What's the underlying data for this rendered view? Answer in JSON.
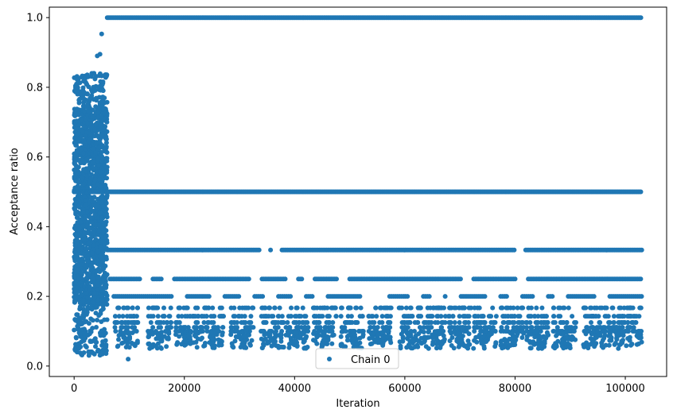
{
  "chart_data": {
    "type": "scatter",
    "xlabel": "Iteration",
    "ylabel": "Acceptance ratio",
    "xlim": [
      -4500,
      107500
    ],
    "ylim": [
      -0.03,
      1.03
    ],
    "x_ticks": [
      0,
      20000,
      40000,
      60000,
      80000,
      100000
    ],
    "x_tick_labels": [
      "0",
      "20000",
      "40000",
      "60000",
      "80000",
      "100000"
    ],
    "y_ticks": [
      0.0,
      0.2,
      0.4,
      0.6,
      0.8,
      1.0
    ],
    "y_tick_labels": [
      "0.0",
      "0.2",
      "0.4",
      "0.6",
      "0.8",
      "1.0"
    ],
    "grid": false,
    "legend_position": "lower-center",
    "marker_color": "#1f77b4",
    "series": [
      {
        "name": "Chain 0",
        "x_range": [
          0,
          103000
        ],
        "burn_in_end": 6000,
        "burn_in_y_range": [
          0.03,
          0.95
        ],
        "levels": [
          1.0,
          0.5,
          0.333,
          0.25,
          0.2,
          0.167,
          0.143,
          0.125,
          0.111,
          0.1
        ],
        "y_min_after_burn_in": 0.02
      }
    ]
  }
}
